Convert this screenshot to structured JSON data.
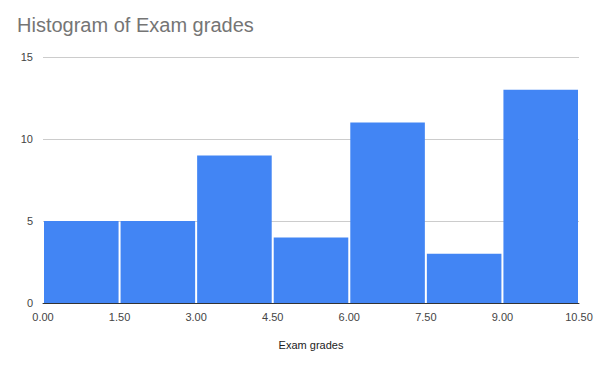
{
  "chart_data": {
    "type": "histogram",
    "title": "Histogram of Exam grades",
    "x_label": "Exam grades",
    "bins": [
      0,
      1.5,
      3,
      4.5,
      6,
      7.5,
      9,
      10.5
    ],
    "values": [
      5,
      5,
      9,
      4,
      11,
      3,
      13
    ],
    "color": "#4285f4",
    "xlim": [
      0,
      10.5
    ],
    "xticks": [
      {
        "value": 0,
        "label": "0.00"
      },
      {
        "value": 1.5,
        "label": "1.50"
      },
      {
        "value": 3,
        "label": "3.00"
      },
      {
        "value": 4.5,
        "label": "4.50"
      },
      {
        "value": 6,
        "label": "6.00"
      },
      {
        "value": 7.5,
        "label": "7.50"
      },
      {
        "value": 9,
        "label": "9.00"
      },
      {
        "value": 10.5,
        "label": "10.50"
      }
    ],
    "ylim": [
      0,
      15
    ],
    "yticks": [
      0,
      5,
      10,
      15
    ],
    "grid": true
  }
}
